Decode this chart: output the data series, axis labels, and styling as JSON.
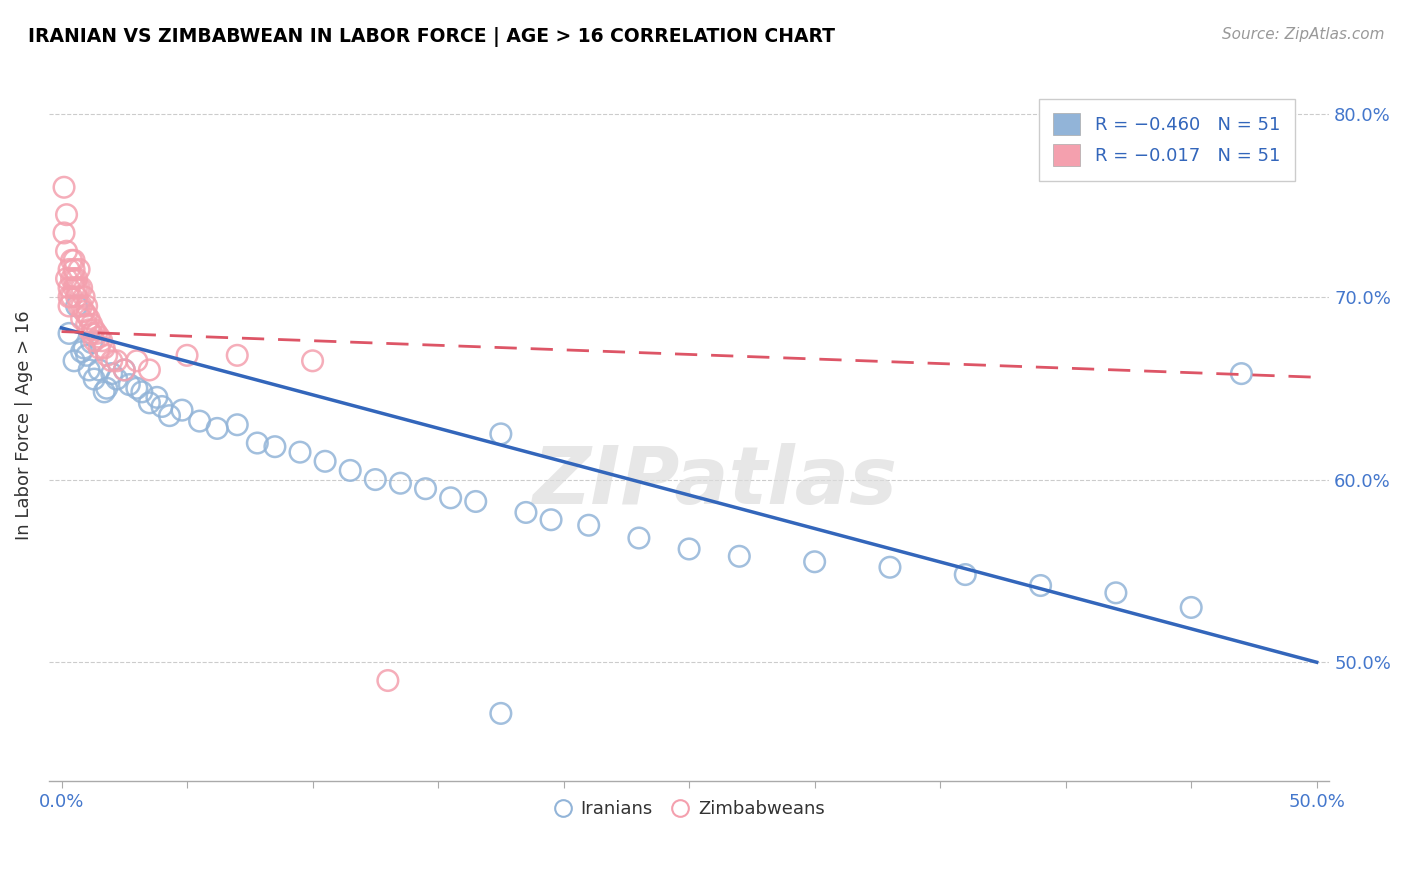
{
  "title": "IRANIAN VS ZIMBABWEAN IN LABOR FORCE | AGE > 16 CORRELATION CHART",
  "source_text": "Source: ZipAtlas.com",
  "ylabel": "In Labor Force | Age > 16",
  "xlim": [
    -0.005,
    0.505
  ],
  "ylim": [
    0.435,
    0.825
  ],
  "blue_color": "#92B4D8",
  "pink_color": "#F4A0AE",
  "blue_line_color": "#3366BB",
  "pink_line_color": "#DD5566",
  "watermark": "ZIPatlas",
  "yticks": [
    0.5,
    0.6,
    0.7,
    0.8
  ],
  "yticklabels": [
    "50.0%",
    "60.0%",
    "70.0%",
    "80.0%"
  ],
  "blue_intercept": 0.683,
  "blue_slope": -0.366,
  "pink_intercept": 0.681,
  "pink_slope": -0.05,
  "iranians_x": [
    0.003,
    0.005,
    0.006,
    0.008,
    0.009,
    0.01,
    0.011,
    0.012,
    0.013,
    0.015,
    0.017,
    0.018,
    0.02,
    0.022,
    0.025,
    0.027,
    0.03,
    0.032,
    0.035,
    0.038,
    0.04,
    0.043,
    0.048,
    0.055,
    0.062,
    0.07,
    0.078,
    0.085,
    0.095,
    0.105,
    0.115,
    0.125,
    0.135,
    0.145,
    0.155,
    0.165,
    0.175,
    0.185,
    0.195,
    0.21,
    0.23,
    0.25,
    0.27,
    0.3,
    0.33,
    0.36,
    0.39,
    0.42,
    0.45,
    0.47,
    0.175
  ],
  "iranians_y": [
    0.68,
    0.665,
    0.695,
    0.67,
    0.672,
    0.668,
    0.66,
    0.675,
    0.655,
    0.66,
    0.648,
    0.65,
    0.658,
    0.655,
    0.66,
    0.652,
    0.65,
    0.648,
    0.642,
    0.645,
    0.64,
    0.635,
    0.638,
    0.632,
    0.628,
    0.63,
    0.62,
    0.618,
    0.615,
    0.61,
    0.605,
    0.6,
    0.598,
    0.595,
    0.59,
    0.588,
    0.472,
    0.582,
    0.578,
    0.575,
    0.568,
    0.562,
    0.558,
    0.555,
    0.552,
    0.548,
    0.542,
    0.538,
    0.53,
    0.658,
    0.625
  ],
  "zimbabweans_x": [
    0.001,
    0.001,
    0.002,
    0.002,
    0.002,
    0.003,
    0.003,
    0.003,
    0.003,
    0.004,
    0.004,
    0.004,
    0.005,
    0.005,
    0.005,
    0.005,
    0.006,
    0.006,
    0.006,
    0.007,
    0.007,
    0.007,
    0.008,
    0.008,
    0.008,
    0.009,
    0.009,
    0.01,
    0.01,
    0.01,
    0.011,
    0.011,
    0.012,
    0.012,
    0.013,
    0.013,
    0.014,
    0.015,
    0.015,
    0.016,
    0.017,
    0.018,
    0.02,
    0.022,
    0.025,
    0.03,
    0.035,
    0.05,
    0.07,
    0.1,
    0.13
  ],
  "zimbabweans_y": [
    0.76,
    0.735,
    0.745,
    0.725,
    0.71,
    0.715,
    0.705,
    0.7,
    0.695,
    0.72,
    0.71,
    0.7,
    0.72,
    0.715,
    0.71,
    0.705,
    0.71,
    0.705,
    0.7,
    0.715,
    0.705,
    0.695,
    0.705,
    0.695,
    0.688,
    0.7,
    0.692,
    0.695,
    0.69,
    0.685,
    0.688,
    0.682,
    0.685,
    0.68,
    0.682,
    0.676,
    0.68,
    0.678,
    0.672,
    0.676,
    0.672,
    0.668,
    0.665,
    0.665,
    0.66,
    0.665,
    0.66,
    0.668,
    0.668,
    0.665,
    0.49
  ]
}
